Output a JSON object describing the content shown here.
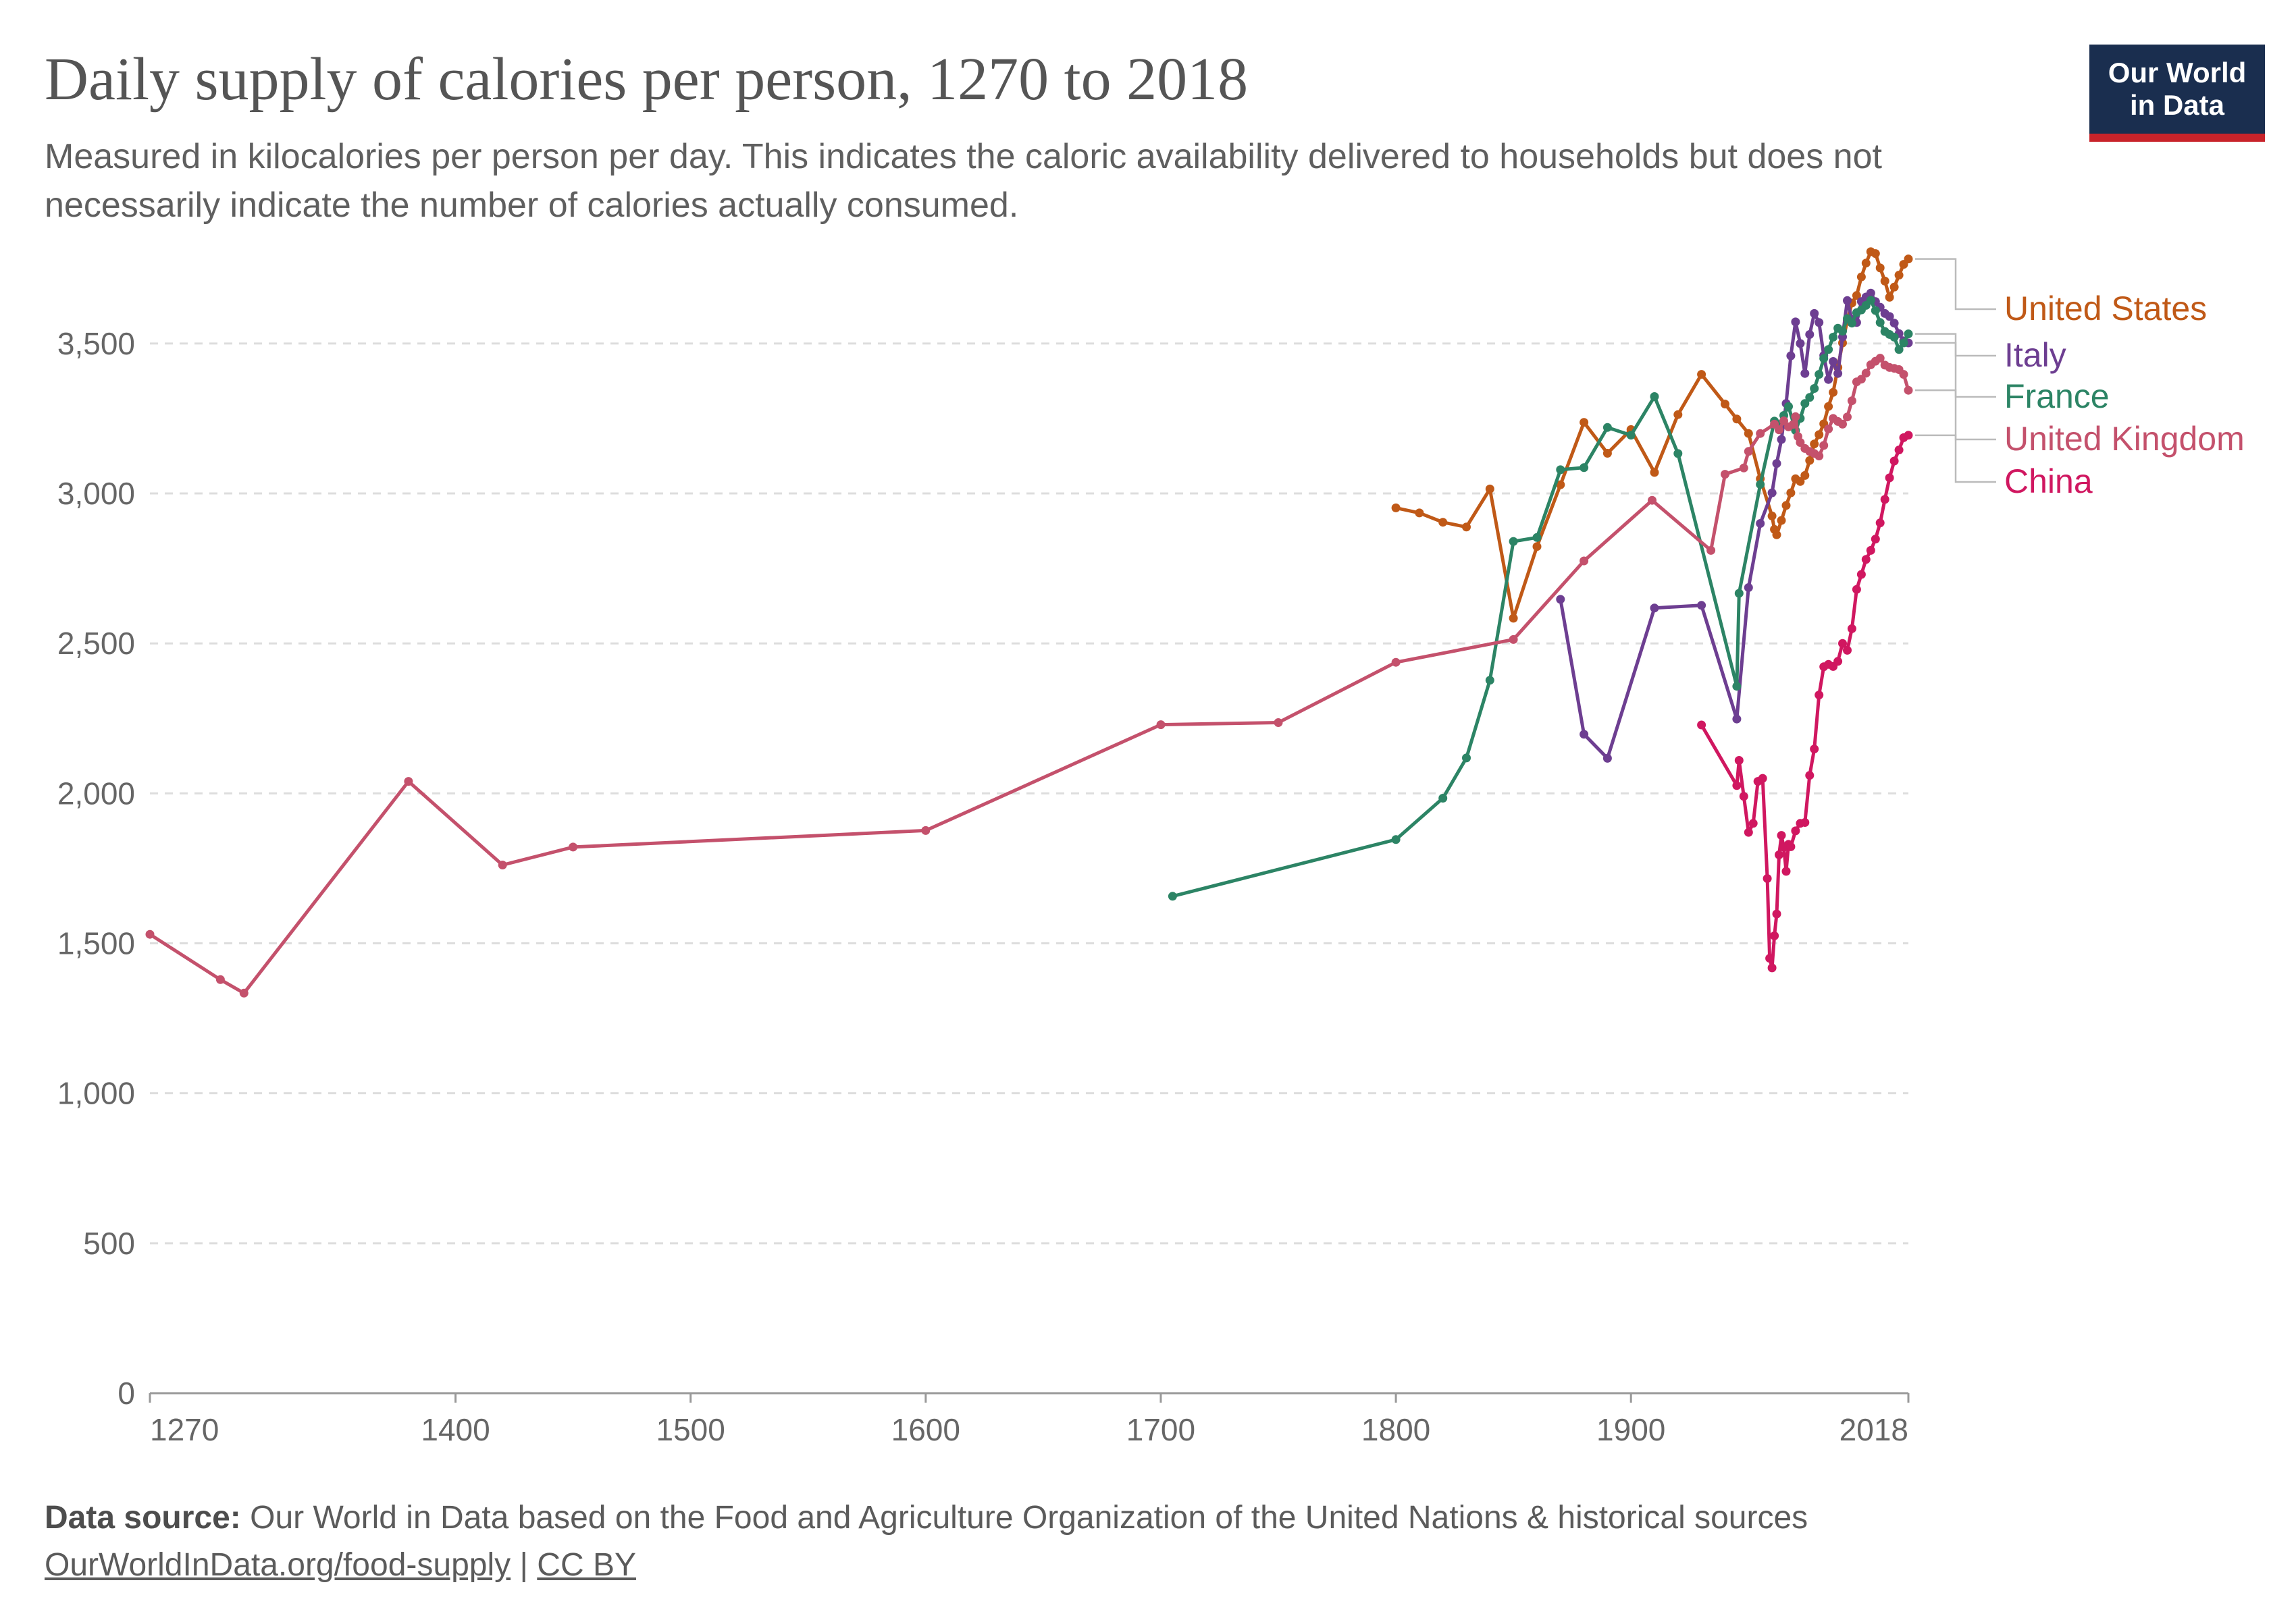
{
  "header": {
    "title": "Daily supply of calories per person, 1270 to 2018",
    "subtitle": "Measured in kilocalories per person per day. This indicates the caloric availability delivered to households but does not necessarily indicate the number of calories actually consumed.",
    "logo_line1": "Our World",
    "logo_line2": "in Data"
  },
  "footer": {
    "source_label": "Data source:",
    "source_text": "Our World in Data based on the Food and Agriculture Organization of the United Nations & historical sources",
    "link_text": "OurWorldInData.org/food-supply",
    "separator": "|",
    "license_text": "CC BY"
  },
  "chart_data": {
    "type": "line",
    "title": "Daily supply of calories per person, 1270 to 2018",
    "xlabel": "",
    "ylabel": "",
    "xlim": [
      1270,
      2018
    ],
    "ylim": [
      0,
      3700
    ],
    "x_ticks": [
      "1270",
      "1400",
      "1500",
      "1600",
      "1700",
      "1800",
      "1900",
      "2018"
    ],
    "x_tick_values": [
      1270,
      1400,
      1500,
      1600,
      1700,
      1800,
      1900,
      2018
    ],
    "y_ticks": [
      "0",
      "500",
      "1,000",
      "1,500",
      "2,000",
      "2,500",
      "3,000",
      "3,500"
    ],
    "y_tick_values": [
      0,
      500,
      1000,
      1500,
      2000,
      2500,
      3000,
      3500
    ],
    "grid": true,
    "legend_placement": "right (line-end labels)",
    "series": [
      {
        "name": "United States",
        "color": "#c05917",
        "points": [
          [
            1800,
            2952
          ],
          [
            1810,
            2935
          ],
          [
            1820,
            2904
          ],
          [
            1830,
            2888
          ],
          [
            1840,
            3015
          ],
          [
            1850,
            2584
          ],
          [
            1860,
            2823
          ],
          [
            1870,
            3029
          ],
          [
            1880,
            3237
          ],
          [
            1890,
            3134
          ],
          [
            1900,
            3213
          ],
          [
            1910,
            3070
          ],
          [
            1920,
            3263
          ],
          [
            1930,
            3397
          ],
          [
            1940,
            3298
          ],
          [
            1945,
            3248
          ],
          [
            1950,
            3200
          ],
          [
            1955,
            3049
          ],
          [
            1960,
            2925
          ],
          [
            1961,
            2880
          ],
          [
            1962,
            2862
          ],
          [
            1964,
            2910
          ],
          [
            1966,
            2960
          ],
          [
            1968,
            3002
          ],
          [
            1970,
            3049
          ],
          [
            1972,
            3040
          ],
          [
            1974,
            3060
          ],
          [
            1976,
            3110
          ],
          [
            1978,
            3165
          ],
          [
            1980,
            3196
          ],
          [
            1982,
            3232
          ],
          [
            1984,
            3290
          ],
          [
            1986,
            3337
          ],
          [
            1988,
            3420
          ],
          [
            1990,
            3502
          ],
          [
            1992,
            3576
          ],
          [
            1994,
            3635
          ],
          [
            1996,
            3660
          ],
          [
            1998,
            3722
          ],
          [
            2000,
            3768
          ],
          [
            2002,
            3806
          ],
          [
            2004,
            3800
          ],
          [
            2006,
            3752
          ],
          [
            2008,
            3708
          ],
          [
            2010,
            3654
          ],
          [
            2012,
            3688
          ],
          [
            2014,
            3728
          ],
          [
            2016,
            3764
          ],
          [
            2018,
            3782
          ]
        ]
      },
      {
        "name": "Italy",
        "color": "#6d3e91",
        "points": [
          [
            1870,
            2647
          ],
          [
            1880,
            2197
          ],
          [
            1890,
            2117
          ],
          [
            1910,
            2618
          ],
          [
            1930,
            2627
          ],
          [
            1945,
            2248
          ],
          [
            1950,
            2686
          ],
          [
            1955,
            2900
          ],
          [
            1960,
            3002
          ],
          [
            1962,
            3100
          ],
          [
            1964,
            3180
          ],
          [
            1966,
            3300
          ],
          [
            1968,
            3459
          ],
          [
            1970,
            3572
          ],
          [
            1972,
            3500
          ],
          [
            1974,
            3400
          ],
          [
            1976,
            3530
          ],
          [
            1978,
            3600
          ],
          [
            1980,
            3570
          ],
          [
            1982,
            3460
          ],
          [
            1984,
            3380
          ],
          [
            1986,
            3440
          ],
          [
            1988,
            3400
          ],
          [
            1990,
            3522
          ],
          [
            1992,
            3643
          ],
          [
            1994,
            3580
          ],
          [
            1996,
            3570
          ],
          [
            1998,
            3640
          ],
          [
            2000,
            3655
          ],
          [
            2002,
            3668
          ],
          [
            2004,
            3640
          ],
          [
            2006,
            3621
          ],
          [
            2008,
            3600
          ],
          [
            2010,
            3590
          ],
          [
            2012,
            3568
          ],
          [
            2014,
            3533
          ],
          [
            2016,
            3509
          ],
          [
            2018,
            3502
          ]
        ]
      },
      {
        "name": "France",
        "color": "#2c8465",
        "points": [
          [
            1705,
            1657
          ],
          [
            1800,
            1846
          ],
          [
            1820,
            1984
          ],
          [
            1830,
            2118
          ],
          [
            1840,
            2377
          ],
          [
            1850,
            2840
          ],
          [
            1860,
            2853
          ],
          [
            1870,
            3079
          ],
          [
            1880,
            3086
          ],
          [
            1890,
            3220
          ],
          [
            1900,
            3194
          ],
          [
            1910,
            3323
          ],
          [
            1920,
            3133
          ],
          [
            1945,
            2357
          ],
          [
            1946,
            2667
          ],
          [
            1955,
            3030
          ],
          [
            1961,
            3241
          ],
          [
            1963,
            3230
          ],
          [
            1965,
            3260
          ],
          [
            1967,
            3290
          ],
          [
            1970,
            3210
          ],
          [
            1972,
            3250
          ],
          [
            1974,
            3300
          ],
          [
            1976,
            3320
          ],
          [
            1978,
            3350
          ],
          [
            1980,
            3397
          ],
          [
            1982,
            3450
          ],
          [
            1984,
            3480
          ],
          [
            1986,
            3521
          ],
          [
            1988,
            3551
          ],
          [
            1990,
            3541
          ],
          [
            1992,
            3583
          ],
          [
            1994,
            3568
          ],
          [
            1996,
            3603
          ],
          [
            1998,
            3612
          ],
          [
            2000,
            3627
          ],
          [
            2002,
            3644
          ],
          [
            2004,
            3610
          ],
          [
            2006,
            3570
          ],
          [
            2008,
            3540
          ],
          [
            2010,
            3530
          ],
          [
            2012,
            3521
          ],
          [
            2014,
            3480
          ],
          [
            2016,
            3502
          ],
          [
            2018,
            3532
          ]
        ]
      },
      {
        "name": "United Kingdom",
        "color": "#c4516c",
        "points": [
          [
            1270,
            1530
          ],
          [
            1300,
            1379
          ],
          [
            1310,
            1334
          ],
          [
            1380,
            2040
          ],
          [
            1420,
            1761
          ],
          [
            1450,
            1821
          ],
          [
            1600,
            1876
          ],
          [
            1700,
            2229
          ],
          [
            1750,
            2236
          ],
          [
            1800,
            2437
          ],
          [
            1850,
            2513
          ],
          [
            1880,
            2775
          ],
          [
            1909,
            2977
          ],
          [
            1934,
            2810
          ],
          [
            1940,
            3064
          ],
          [
            1948,
            3085
          ],
          [
            1950,
            3140
          ],
          [
            1955,
            3200
          ],
          [
            1961,
            3231
          ],
          [
            1963,
            3212
          ],
          [
            1965,
            3242
          ],
          [
            1967,
            3222
          ],
          [
            1969,
            3230
          ],
          [
            1970,
            3256
          ],
          [
            1971,
            3190
          ],
          [
            1972,
            3170
          ],
          [
            1974,
            3150
          ],
          [
            1976,
            3140
          ],
          [
            1978,
            3133
          ],
          [
            1980,
            3125
          ],
          [
            1982,
            3160
          ],
          [
            1984,
            3215
          ],
          [
            1986,
            3250
          ],
          [
            1988,
            3240
          ],
          [
            1990,
            3231
          ],
          [
            1992,
            3255
          ],
          [
            1994,
            3309
          ],
          [
            1996,
            3372
          ],
          [
            1998,
            3381
          ],
          [
            2000,
            3401
          ],
          [
            2002,
            3429
          ],
          [
            2004,
            3441
          ],
          [
            2006,
            3451
          ],
          [
            2008,
            3428
          ],
          [
            2010,
            3420
          ],
          [
            2012,
            3417
          ],
          [
            2014,
            3413
          ],
          [
            2016,
            3397
          ],
          [
            2018,
            3344
          ]
        ]
      },
      {
        "name": "China",
        "color": "#d01760",
        "points": [
          [
            1930,
            2228
          ],
          [
            1945,
            2026
          ],
          [
            1946,
            2110
          ],
          [
            1948,
            1990
          ],
          [
            1950,
            1870
          ],
          [
            1952,
            1900
          ],
          [
            1954,
            2040
          ],
          [
            1956,
            2050
          ],
          [
            1958,
            1716
          ],
          [
            1959,
            1450
          ],
          [
            1960,
            1418
          ],
          [
            1961,
            1525
          ],
          [
            1962,
            1598
          ],
          [
            1963,
            1795
          ],
          [
            1964,
            1860
          ],
          [
            1965,
            1820
          ],
          [
            1966,
            1740
          ],
          [
            1967,
            1830
          ],
          [
            1968,
            1822
          ],
          [
            1970,
            1875
          ],
          [
            1972,
            1900
          ],
          [
            1974,
            1903
          ],
          [
            1976,
            2060
          ],
          [
            1978,
            2148
          ],
          [
            1980,
            2328
          ],
          [
            1982,
            2422
          ],
          [
            1984,
            2430
          ],
          [
            1986,
            2423
          ],
          [
            1988,
            2440
          ],
          [
            1990,
            2500
          ],
          [
            1992,
            2477
          ],
          [
            1994,
            2549
          ],
          [
            1996,
            2680
          ],
          [
            1998,
            2730
          ],
          [
            2000,
            2780
          ],
          [
            2002,
            2810
          ],
          [
            2004,
            2848
          ],
          [
            2006,
            2902
          ],
          [
            2008,
            2980
          ],
          [
            2010,
            3052
          ],
          [
            2012,
            3108
          ],
          [
            2014,
            3145
          ],
          [
            2016,
            3186
          ],
          [
            2018,
            3194
          ]
        ]
      }
    ]
  }
}
